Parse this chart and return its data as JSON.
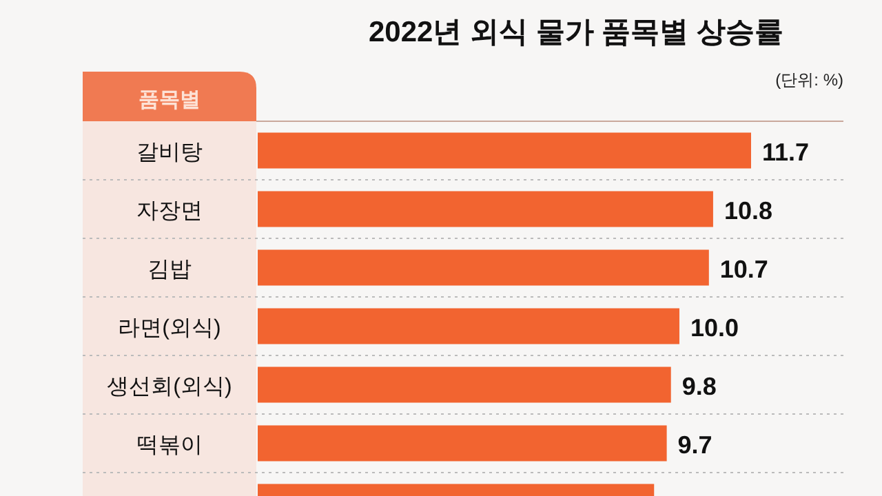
{
  "chart_data": {
    "type": "bar",
    "orientation": "horizontal",
    "title": "2022년 외식 물가 품목별 상승률",
    "subtitle": "(단위: %)",
    "ylabel": "품목별",
    "categories": [
      "갈비탕",
      "자장면",
      "김밥",
      "라면(외식)",
      "생선회(외식)",
      "떡볶이",
      null
    ],
    "values": [
      11.7,
      10.8,
      10.7,
      10.0,
      9.8,
      9.7,
      9.4
    ],
    "value_labels": [
      "11.7",
      "10.8",
      "10.7",
      "10.0",
      "9.8",
      "9.7",
      null
    ],
    "color": "#f26430"
  }
}
